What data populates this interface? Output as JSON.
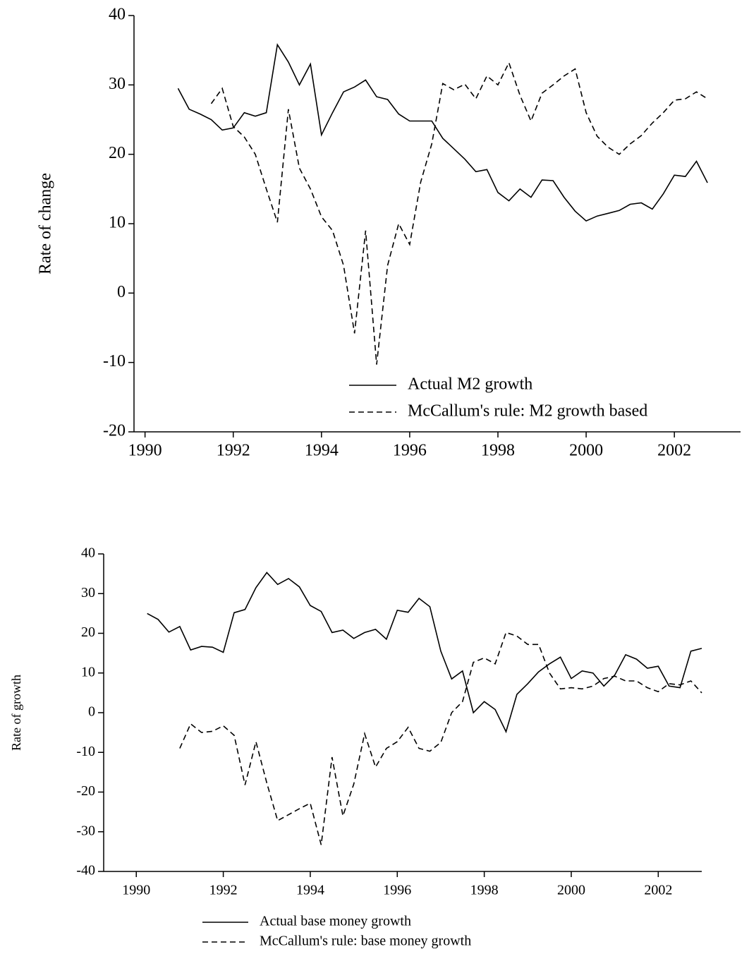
{
  "chart_data": [
    {
      "type": "line",
      "ylabel": "Rate of change",
      "xlim": [
        1989.75,
        2003.5
      ],
      "xticks": [
        1990,
        1992,
        1994,
        1996,
        1998,
        2000,
        2002
      ],
      "ylim": [
        -20,
        40
      ],
      "yticks": [
        -20,
        -10,
        0,
        10,
        20,
        30,
        40
      ],
      "x": [
        1990.75,
        1991,
        1991.25,
        1991.5,
        1991.75,
        1992,
        1992.25,
        1992.5,
        1992.75,
        1993,
        1993.25,
        1993.5,
        1993.75,
        1994,
        1994.25,
        1994.5,
        1994.75,
        1995,
        1995.25,
        1995.5,
        1995.75,
        1996,
        1996.25,
        1996.5,
        1996.75,
        1997,
        1997.25,
        1997.5,
        1997.75,
        1998,
        1998.25,
        1998.5,
        1998.75,
        1999,
        1999.25,
        1999.5,
        1999.75,
        2000,
        2000.25,
        2000.5,
        2000.75,
        2001,
        2001.25,
        2001.5,
        2001.75,
        2002,
        2002.25,
        2002.5,
        2002.75
      ],
      "series": [
        {
          "name": "Actual M2 growth",
          "color": "#000000",
          "linestyle": "solid",
          "values": [
            29.5,
            26.5,
            25.8,
            25,
            23.5,
            23.8,
            26,
            25.5,
            26,
            35.8,
            33.3,
            30,
            33,
            22.8,
            26,
            29,
            29.7,
            30.7,
            28.3,
            27.9,
            25.8,
            24.8,
            24.8,
            24.8,
            22.3,
            20.8,
            19.3,
            17.5,
            17.8,
            14.5,
            13.3,
            15,
            13.8,
            16.3,
            16.2,
            13.8,
            11.8,
            10.4,
            11.1,
            11.5,
            11.9,
            12.8,
            13,
            12.1,
            14.3,
            17,
            16.8,
            19,
            15.9
          ]
        },
        {
          "name": "McCallum's rule: M2 growth based",
          "color": "#000000",
          "linestyle": "dashed",
          "values": [
            null,
            null,
            null,
            27.3,
            29.5,
            24,
            22.5,
            20,
            15,
            10.2,
            26.5,
            18,
            15,
            11,
            9,
            4,
            -5.8,
            9,
            -10.3,
            4,
            10,
            7,
            16,
            21.5,
            30.2,
            29.3,
            30.1,
            28,
            31.3,
            30,
            33.2,
            28.5,
            24.8,
            28.8,
            30,
            31.3,
            32.3,
            26,
            22.6,
            21,
            20,
            21.5,
            22.7,
            24.5,
            26,
            27.8,
            28,
            29,
            28
          ]
        }
      ]
    },
    {
      "type": "line",
      "ylabel": "Rate of growth",
      "xlim": [
        1989.25,
        2003.0
      ],
      "xticks": [
        1990,
        1992,
        1994,
        1996,
        1998,
        2000,
        2002
      ],
      "ylim": [
        -40,
        40
      ],
      "yticks": [
        -40,
        -30,
        -20,
        -10,
        0,
        10,
        20,
        30,
        40
      ],
      "x": [
        1990.25,
        1990.5,
        1990.75,
        1991,
        1991.25,
        1991.5,
        1991.75,
        1992,
        1992.25,
        1992.5,
        1992.75,
        1993,
        1993.25,
        1993.5,
        1993.75,
        1994,
        1994.25,
        1994.5,
        1994.75,
        1995,
        1995.25,
        1995.5,
        1995.75,
        1996,
        1996.25,
        1996.5,
        1996.75,
        1997,
        1997.25,
        1997.5,
        1997.75,
        1998,
        1998.25,
        1998.5,
        1998.75,
        1999,
        1999.25,
        1999.5,
        1999.75,
        2000,
        2000.25,
        2000.5,
        2000.75,
        2001,
        2001.25,
        2001.5,
        2001.75,
        2002,
        2002.25,
        2002.5,
        2002.75,
        2003
      ],
      "series": [
        {
          "name": "Actual base money growth",
          "color": "#000000",
          "linestyle": "solid",
          "values": [
            25,
            23.5,
            20.3,
            21.7,
            15.8,
            16.7,
            16.5,
            15.2,
            25.2,
            26,
            31.5,
            35.3,
            32.3,
            33.8,
            31.7,
            27,
            25.5,
            20.2,
            20.8,
            18.7,
            20.2,
            21,
            18.5,
            25.8,
            25.3,
            28.8,
            26.7,
            15.5,
            8.5,
            10.5,
            0,
            2.8,
            0.8,
            -4.8,
            4.6,
            7.3,
            10.3,
            12.3,
            14,
            8.6,
            10.5,
            10,
            6.7,
            9.5,
            14.6,
            13.5,
            11.2,
            11.7,
            6.7,
            6.3,
            15.5,
            16.2
          ]
        },
        {
          "name": "McCallum's rule: base money growth",
          "color": "#000000",
          "linestyle": "dashed",
          "values": [
            null,
            null,
            null,
            -9,
            -2.8,
            -5,
            -4.7,
            -3.3,
            -5.7,
            -18.2,
            -7.3,
            -17.7,
            -27.2,
            -25.7,
            -24.2,
            -22.8,
            -33.3,
            -11.2,
            -26,
            -18,
            -5.3,
            -13.7,
            -9,
            -7.3,
            -3.7,
            -9,
            -9.7,
            -7.5,
            0,
            2.8,
            12.7,
            13.8,
            12.3,
            20.2,
            19.3,
            17.2,
            17.2,
            10,
            6,
            6.3,
            6,
            6.7,
            8.6,
            9.2,
            8,
            8,
            6.3,
            5.3,
            7.3,
            7,
            8,
            5
          ]
        }
      ]
    }
  ]
}
